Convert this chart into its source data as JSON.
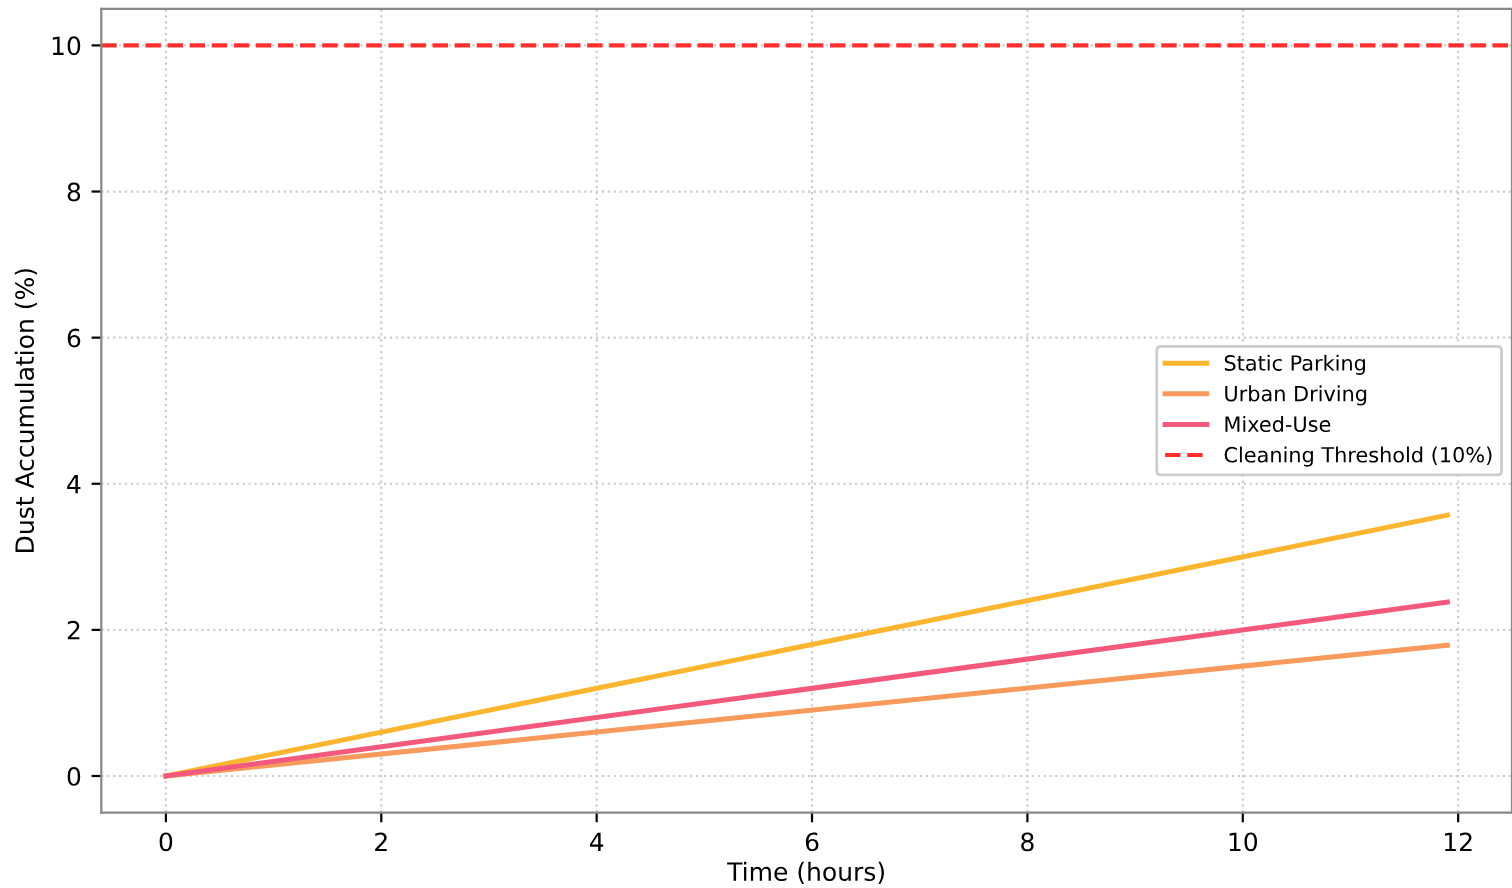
{
  "chart_data": {
    "type": "line",
    "xlabel": "Time (hours)",
    "ylabel": "Dust Accumulation (%)",
    "x": [
      0,
      11.9
    ],
    "series": [
      {
        "name": "Static Parking",
        "color": "#fbb52f",
        "values": [
          0,
          3.57
        ]
      },
      {
        "name": "Urban Driving",
        "color": "#f79a5c",
        "values": [
          0,
          1.79
        ]
      },
      {
        "name": "Mixed-Use",
        "color": "#f2597c",
        "values": [
          0,
          2.38
        ]
      }
    ],
    "ref_lines": [
      {
        "axis": "y",
        "value": 10,
        "label": "Cleaning Threshold (10%)",
        "color": "#ff3030",
        "line_style": "dashed"
      }
    ],
    "xlim": [
      -0.6,
      12.5
    ],
    "xticks": [
      0,
      2,
      4,
      6,
      8,
      10,
      12
    ],
    "ylim": [
      -0.5,
      10.5
    ],
    "yticks": [
      0,
      2,
      4,
      6,
      8,
      10
    ],
    "grid": true,
    "legend": "right",
    "marker": "none",
    "line_style": "solid"
  }
}
